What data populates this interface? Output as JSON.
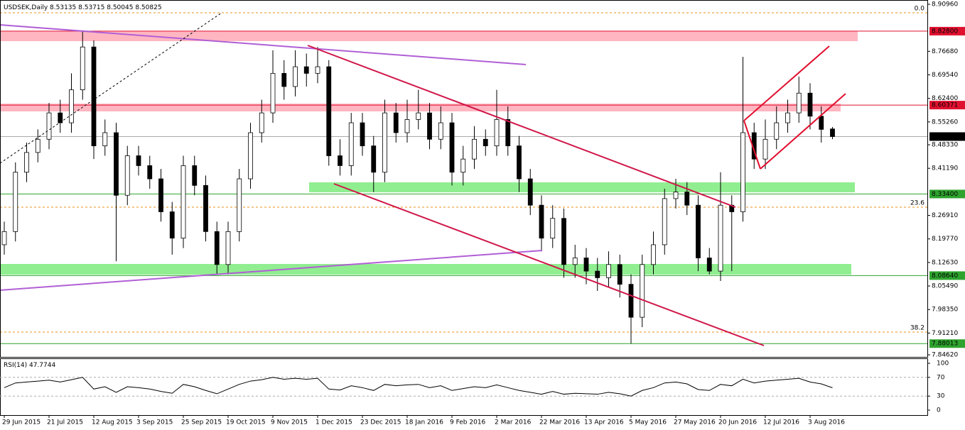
{
  "chart_data": {
    "type": "candlestick",
    "title": "USDSEK,Daily",
    "categories": [
      "29 Jun 2015",
      null,
      null,
      null,
      "21 Jul 2015",
      null,
      null,
      null,
      "12 Aug 2015",
      null,
      null,
      null,
      "3 Sep 2015",
      null,
      null,
      null,
      "25 Sep 2015",
      null,
      null,
      null,
      "19 Oct 2015",
      null,
      null,
      null,
      "9 Nov 2015",
      null,
      null,
      null,
      "1 Dec 2015",
      null,
      null,
      null,
      "23 Dec 2015",
      null,
      null,
      null,
      "18 Jan 2016",
      null,
      null,
      null,
      "9 Feb 2016",
      null,
      null,
      null,
      "2 Mar 2016",
      null,
      null,
      null,
      "22 Mar 2016",
      null,
      null,
      null,
      "13 Apr 2016",
      null,
      null,
      null,
      "5 May 2016",
      null,
      null,
      null,
      "27 May 2016",
      null,
      null,
      null,
      "20 Jun 2016",
      null,
      null,
      null,
      "12 Jul 2016",
      null,
      null,
      null,
      "3 Aug 2016",
      null,
      null
    ],
    "open": [
      8.18,
      8.22,
      8.4,
      8.46,
      8.5,
      8.58,
      8.55,
      8.65,
      8.78,
      8.48,
      8.52,
      8.33,
      8.45,
      8.42,
      8.38,
      8.28,
      8.2,
      8.42,
      8.36,
      8.22,
      8.12,
      8.22,
      8.38,
      8.52,
      8.58,
      8.7,
      8.66,
      8.72,
      8.7,
      8.72,
      8.45,
      8.42,
      8.55,
      8.48,
      8.4,
      8.58,
      8.52,
      8.56,
      8.58,
      8.5,
      8.55,
      8.4,
      8.44,
      8.5,
      8.48,
      8.56,
      8.48,
      8.38,
      8.3,
      8.2,
      8.26,
      8.12,
      8.14,
      8.1,
      8.08,
      8.12,
      8.06,
      7.96,
      8.12,
      8.18,
      8.32,
      8.34,
      8.3,
      8.14,
      8.1,
      8.3,
      8.28,
      8.52,
      8.44,
      8.5,
      8.55,
      8.58,
      8.64,
      8.57,
      8.53135
    ],
    "high": [
      8.25,
      8.43,
      8.49,
      8.53,
      8.61,
      8.62,
      8.7,
      8.83,
      8.8,
      8.56,
      8.55,
      8.48,
      8.48,
      8.45,
      8.41,
      8.31,
      8.45,
      8.45,
      8.39,
      8.25,
      8.25,
      8.41,
      8.55,
      8.62,
      8.77,
      8.74,
      8.77,
      8.76,
      8.78,
      8.74,
      8.5,
      8.58,
      8.58,
      8.51,
      8.62,
      8.61,
      8.62,
      8.65,
      8.61,
      8.6,
      8.58,
      8.48,
      8.54,
      8.53,
      8.65,
      8.6,
      8.51,
      8.41,
      8.33,
      8.3,
      8.29,
      8.18,
      8.17,
      8.14,
      8.16,
      8.15,
      8.09,
      8.15,
      8.22,
      8.35,
      8.38,
      8.37,
      8.33,
      8.17,
      8.4,
      8.33,
      8.75,
      8.55,
      8.56,
      8.6,
      8.62,
      8.69,
      8.67,
      8.6,
      8.53715
    ],
    "low": [
      8.15,
      8.19,
      8.37,
      8.43,
      8.47,
      8.52,
      8.52,
      8.62,
      8.44,
      8.45,
      8.13,
      8.3,
      8.39,
      8.35,
      8.25,
      8.15,
      8.17,
      8.33,
      8.19,
      8.09,
      8.09,
      8.19,
      8.35,
      8.49,
      8.55,
      8.62,
      8.63,
      8.66,
      8.67,
      8.42,
      8.39,
      8.39,
      8.45,
      8.34,
      8.37,
      8.49,
      8.49,
      8.53,
      8.47,
      8.47,
      8.36,
      8.36,
      8.41,
      8.45,
      8.45,
      8.45,
      8.34,
      8.27,
      8.16,
      8.17,
      8.08,
      8.08,
      8.06,
      8.04,
      8.05,
      8.02,
      7.88,
      7.93,
      8.09,
      8.15,
      8.29,
      8.27,
      8.1,
      8.09,
      8.07,
      8.1,
      8.25,
      8.41,
      8.41,
      8.47,
      8.52,
      8.55,
      8.53,
      8.49,
      8.50045
    ],
    "close": [
      8.22,
      8.4,
      8.46,
      8.5,
      8.58,
      8.55,
      8.65,
      8.78,
      8.48,
      8.52,
      8.33,
      8.45,
      8.42,
      8.38,
      8.28,
      8.2,
      8.42,
      8.36,
      8.22,
      8.12,
      8.22,
      8.38,
      8.52,
      8.58,
      8.7,
      8.66,
      8.72,
      8.7,
      8.72,
      8.45,
      8.42,
      8.55,
      8.48,
      8.4,
      8.58,
      8.52,
      8.56,
      8.58,
      8.5,
      8.55,
      8.4,
      8.44,
      8.5,
      8.48,
      8.56,
      8.48,
      8.38,
      8.3,
      8.2,
      8.26,
      8.12,
      8.14,
      8.1,
      8.08,
      8.12,
      8.06,
      7.96,
      8.12,
      8.18,
      8.32,
      8.34,
      8.3,
      8.14,
      8.1,
      8.3,
      8.28,
      8.52,
      8.44,
      8.5,
      8.55,
      8.58,
      8.64,
      8.57,
      8.53,
      8.50825
    ],
    "up_color": "#ffffff",
    "down_color": "#000000",
    "ylim": [
      7.8462,
      8.9096
    ],
    "yticks": [
      {
        "value": 8.9096,
        "label": "8.90960"
      },
      {
        "value": 8.7668,
        "label": "8.76680"
      },
      {
        "value": 8.6954,
        "label": "8.69540"
      },
      {
        "value": 8.624,
        "label": "8.62400"
      },
      {
        "value": 8.5526,
        "label": "8.55260"
      },
      {
        "value": 8.4833,
        "label": "8.48330"
      },
      {
        "value": 8.4119,
        "label": "8.41190"
      },
      {
        "value": 8.2691,
        "label": "8.26910"
      },
      {
        "value": 8.1977,
        "label": "8.19770"
      },
      {
        "value": 8.1263,
        "label": "8.12630"
      },
      {
        "value": 8.0549,
        "label": "8.05490"
      },
      {
        "value": 7.9835,
        "label": "7.98350"
      },
      {
        "value": 7.9121,
        "label": "7.91210"
      },
      {
        "value": 7.8462,
        "label": "7.84620"
      }
    ],
    "levels": [
      {
        "value": 8.828,
        "label": "8.82800",
        "color": "#e0102f"
      },
      {
        "value": 8.60371,
        "label": "8.60371",
        "color": "#e0102f"
      },
      {
        "value": 8.334,
        "label": "8.33400",
        "color": "#2ea32e"
      },
      {
        "value": 8.0864,
        "label": "8.08640",
        "color": "#2ea32e"
      },
      {
        "value": 7.88013,
        "label": "7.88013",
        "color": "#2ea32e"
      }
    ],
    "fib": [
      {
        "level": "0.0",
        "price": 8.8838
      },
      {
        "level": "23.6",
        "price": 8.294
      },
      {
        "level": "38.2",
        "price": 7.915
      }
    ],
    "fib_color": "#e8901a",
    "rsi": {
      "title": "RSI(14)",
      "values": [
        48,
        58,
        60,
        62,
        64,
        60,
        65,
        70,
        45,
        50,
        38,
        50,
        48,
        45,
        40,
        36,
        55,
        50,
        42,
        35,
        45,
        55,
        62,
        65,
        70,
        66,
        68,
        66,
        68,
        45,
        43,
        52,
        48,
        42,
        55,
        52,
        54,
        55,
        48,
        52,
        42,
        46,
        50,
        48,
        54,
        48,
        42,
        38,
        34,
        40,
        34,
        36,
        35,
        34,
        38,
        35,
        30,
        42,
        48,
        58,
        60,
        56,
        44,
        42,
        55,
        52,
        66,
        58,
        62,
        64,
        66,
        68,
        60,
        56,
        47.7744
      ],
      "ylim": [
        0,
        100
      ],
      "yticks": [
        0,
        30,
        70,
        100
      ],
      "levels": [
        30,
        70
      ]
    }
  }
}
